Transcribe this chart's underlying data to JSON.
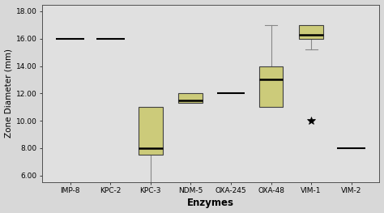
{
  "categories": [
    "IMP-8",
    "KPC-2",
    "KPC-3",
    "NDM-5",
    "OXA-245",
    "OXA-48",
    "VIM-1",
    "VIM-2"
  ],
  "box_data": {
    "IMP-8": {
      "q1": 16.0,
      "median": 16.0,
      "q3": 16.0,
      "whisker_low": 16.0,
      "whisker_high": 16.0,
      "outliers": [],
      "is_line": true
    },
    "KPC-2": {
      "q1": 16.0,
      "median": 16.0,
      "q3": 16.0,
      "whisker_low": 16.0,
      "whisker_high": 16.0,
      "outliers": [],
      "is_line": true
    },
    "KPC-3": {
      "q1": 7.5,
      "median": 8.0,
      "q3": 11.0,
      "whisker_low": 5.2,
      "whisker_high": 11.0,
      "outliers": [],
      "is_line": false
    },
    "NDM-5": {
      "q1": 11.3,
      "median": 11.5,
      "q3": 12.0,
      "whisker_low": 11.3,
      "whisker_high": 12.0,
      "outliers": [],
      "is_line": false
    },
    "OXA-245": {
      "q1": 12.0,
      "median": 12.0,
      "q3": 12.0,
      "whisker_low": 12.0,
      "whisker_high": 12.0,
      "outliers": [],
      "is_line": true
    },
    "OXA-48": {
      "q1": 11.0,
      "median": 13.0,
      "q3": 14.0,
      "whisker_low": 11.0,
      "whisker_high": 17.0,
      "outliers": [],
      "is_line": false
    },
    "VIM-1": {
      "q1": 16.0,
      "median": 16.3,
      "q3": 17.0,
      "whisker_low": 15.2,
      "whisker_high": 17.0,
      "outliers": [
        10.0
      ],
      "is_line": false
    },
    "VIM-2": {
      "q1": 8.0,
      "median": 8.0,
      "q3": 8.0,
      "whisker_low": 8.0,
      "whisker_high": 8.0,
      "outliers": [],
      "is_line": true
    }
  },
  "ylim": [
    5.5,
    18.5
  ],
  "yticks": [
    6.0,
    8.0,
    10.0,
    12.0,
    14.0,
    16.0,
    18.0
  ],
  "ylabel": "Zone Diameter (mm)",
  "xlabel": "Enzymes",
  "box_color": "#cccb7a",
  "box_edge_color": "#404040",
  "median_color": "#000000",
  "whisker_color": "#888888",
  "cap_color": "#888888",
  "line_color": "#000000",
  "outlier_marker": "*",
  "outlier_color": "#000000",
  "bg_color": "#e0e0e0",
  "fig_color": "#d8d8d8"
}
